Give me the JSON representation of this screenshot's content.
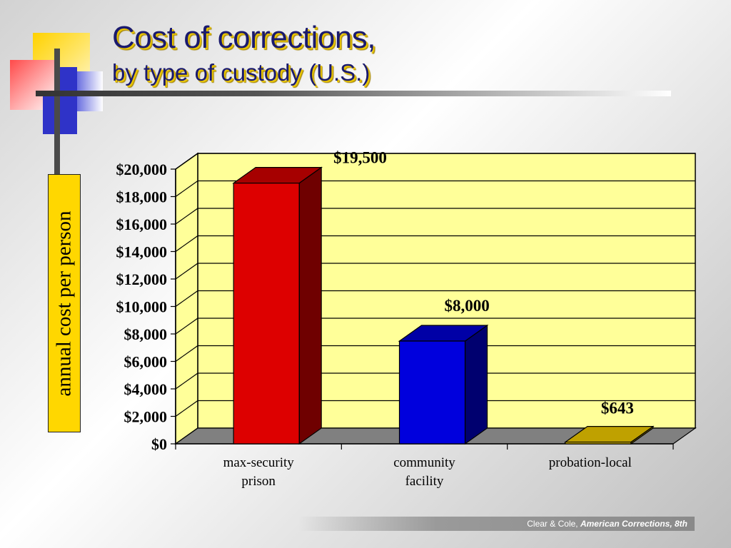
{
  "slide": {
    "title": "Cost of corrections,",
    "subtitle": "by type of custody (U.S.)",
    "footer": {
      "prefix": "Clear & Cole, ",
      "book": "American Corrections, 8th"
    }
  },
  "colors": {
    "plot_background": "#ffff99",
    "floor": "#808080",
    "bar_max_security": "#dd0000",
    "bar_community": "#0000dd",
    "bar_probation": "#ffd700",
    "ylabel_box": "#ffd700"
  },
  "chart_data": {
    "type": "bar",
    "title": "Cost of corrections, by type of custody (U.S.)",
    "ylabel": "annual cost per person",
    "categories": [
      "max-security prison",
      "community facility",
      "probation-local"
    ],
    "category_lines": [
      [
        "max-security",
        "prison"
      ],
      [
        "community",
        "facility"
      ],
      [
        "probation-local"
      ]
    ],
    "values": [
      19500,
      8000,
      643
    ],
    "value_labels": [
      "$19,500",
      "$8,000",
      "$643"
    ],
    "bar_colors": [
      "#dd0000",
      "#0000dd",
      "#ffd700"
    ],
    "ylim": [
      0,
      20000
    ],
    "yticks": [
      0,
      2000,
      4000,
      6000,
      8000,
      10000,
      12000,
      14000,
      16000,
      18000,
      20000
    ],
    "ytick_labels": [
      "$0",
      "$2,000",
      "$4,000",
      "$6,000",
      "$8,000",
      "$10,000",
      "$12,000",
      "$14,000",
      "$16,000",
      "$18,000",
      "$20,000"
    ],
    "grid": true,
    "style": "3d-column"
  }
}
